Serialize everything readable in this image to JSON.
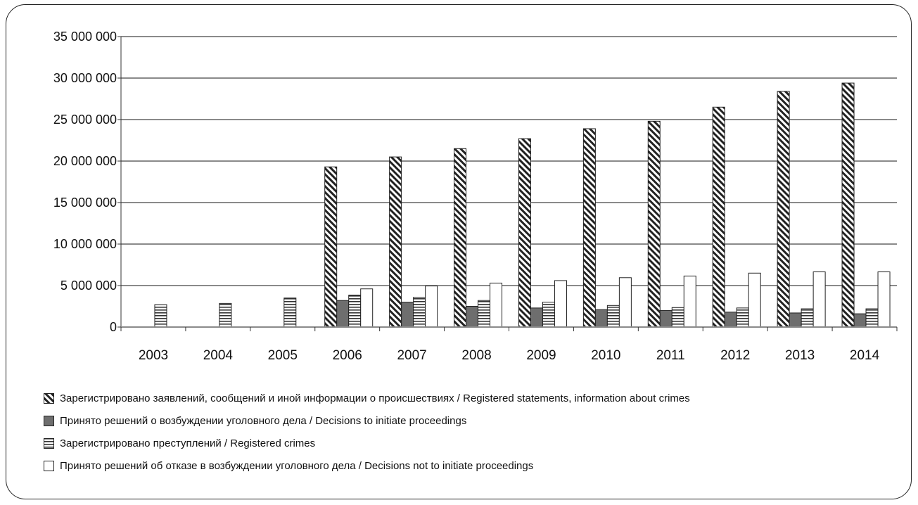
{
  "chart_data": {
    "type": "bar",
    "categories": [
      "2003",
      "2004",
      "2005",
      "2006",
      "2007",
      "2008",
      "2009",
      "2010",
      "2011",
      "2012",
      "2013",
      "2014"
    ],
    "ylim": [
      0,
      35000000
    ],
    "yticks": [
      0,
      5000000,
      10000000,
      15000000,
      20000000,
      25000000,
      30000000,
      35000000
    ],
    "ytick_labels": [
      "0",
      "5 000 000",
      "10 000 000",
      "15 000 000",
      "20 000 000",
      "25 000 000",
      "30 000 000",
      "35 000 000"
    ],
    "grid": true,
    "legend_position": "bottom",
    "series": [
      {
        "name": "Зарегистрировано заявлений, сообщений и иной информации о происшествиях /   Registered statements, information about crimes",
        "pattern": "diagonal-hatch",
        "values": [
          null,
          null,
          null,
          19300000,
          20500000,
          21500000,
          22700000,
          23900000,
          24800000,
          26500000,
          28400000,
          29400000
        ]
      },
      {
        "name": "Принято решений о возбуждении уголовного дела /   Decisions to initiate proceedings",
        "pattern": "solid-gray",
        "color": "#6e6e6e",
        "values": [
          null,
          null,
          null,
          3200000,
          3000000,
          2500000,
          2300000,
          2100000,
          2000000,
          1800000,
          1700000,
          1600000
        ]
      },
      {
        "name": "Зарегистрировано преступлений /   Registered crimes",
        "pattern": "horizontal-stripes",
        "values": [
          2700000,
          2850000,
          3500000,
          3850000,
          3580000,
          3200000,
          3000000,
          2600000,
          2350000,
          2300000,
          2200000,
          2200000
        ]
      },
      {
        "name": "Принято решений об отказе в возбуждении уголовного дела /   Decisions not to initiate proceedings",
        "pattern": "white",
        "values": [
          null,
          null,
          null,
          4600000,
          4950000,
          5300000,
          5600000,
          5950000,
          6150000,
          6500000,
          6650000,
          6650000
        ]
      }
    ]
  }
}
